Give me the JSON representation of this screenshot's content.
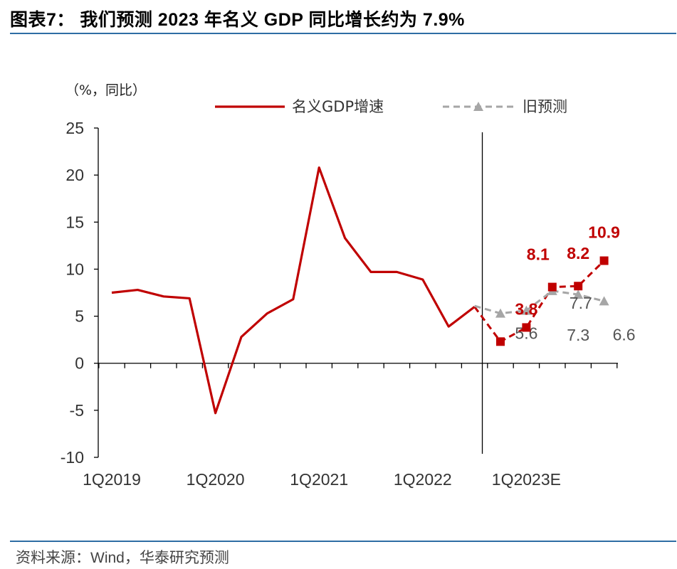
{
  "title": "图表7：  我们预测 2023 年名义 GDP 同比增长约为 7.9%",
  "source": "资料来源：Wind，华泰研究预测",
  "chart_data": {
    "type": "line",
    "unit_label": "（%，同比）",
    "ylim": [
      -10,
      25
    ],
    "yticks": [
      25,
      20,
      15,
      10,
      5,
      0,
      -5,
      -10
    ],
    "ytick_labels": [
      "25",
      "20",
      "15",
      "10",
      "5",
      "0",
      "-5",
      "-10"
    ],
    "xtick_labels": [
      "1Q2019",
      "1Q2020",
      "1Q2021",
      "1Q2022",
      "1Q2023E"
    ],
    "xtick_positions": [
      0,
      4,
      8,
      12,
      16
    ],
    "n_periods": 20,
    "divider_index": 14.3,
    "series": [
      {
        "name": "名义GDP增速",
        "color": "#c00000",
        "style": "solid",
        "x": [
          0,
          1,
          2,
          3,
          4,
          5,
          6,
          7,
          8,
          9,
          10,
          11,
          12,
          13,
          14
        ],
        "values": [
          7.5,
          7.8,
          7.1,
          6.9,
          -5.3,
          2.8,
          5.3,
          6.8,
          20.8,
          13.3,
          9.7,
          9.7,
          8.9,
          3.9,
          6.0
        ]
      },
      {
        "name": "名义GDP增速（预测）",
        "color": "#c00000",
        "style": "dashed",
        "marker": "square",
        "x": [
          14,
          15,
          16,
          17,
          18,
          19
        ],
        "values": [
          6.0,
          2.3,
          3.8,
          8.1,
          8.2,
          10.9
        ],
        "labeled_from": 2,
        "labels": [
          "",
          "",
          "3.8",
          "8.1",
          "8.2",
          "10.9"
        ]
      },
      {
        "name": "旧预测",
        "color": "#a6a6a6",
        "style": "dashed",
        "marker": "triangle",
        "x": [
          14,
          15,
          16,
          17,
          18,
          19
        ],
        "values": [
          6.1,
          5.3,
          5.6,
          7.7,
          7.3,
          6.6
        ],
        "labels": [
          "",
          "",
          "5.6",
          "7.7",
          "7.3",
          "6.6"
        ]
      }
    ],
    "legend": [
      {
        "label": "名义GDP增速",
        "color": "#c00000",
        "style": "solid"
      },
      {
        "label": "旧预测",
        "color": "#a6a6a6",
        "style": "dashed-triangle"
      }
    ]
  }
}
